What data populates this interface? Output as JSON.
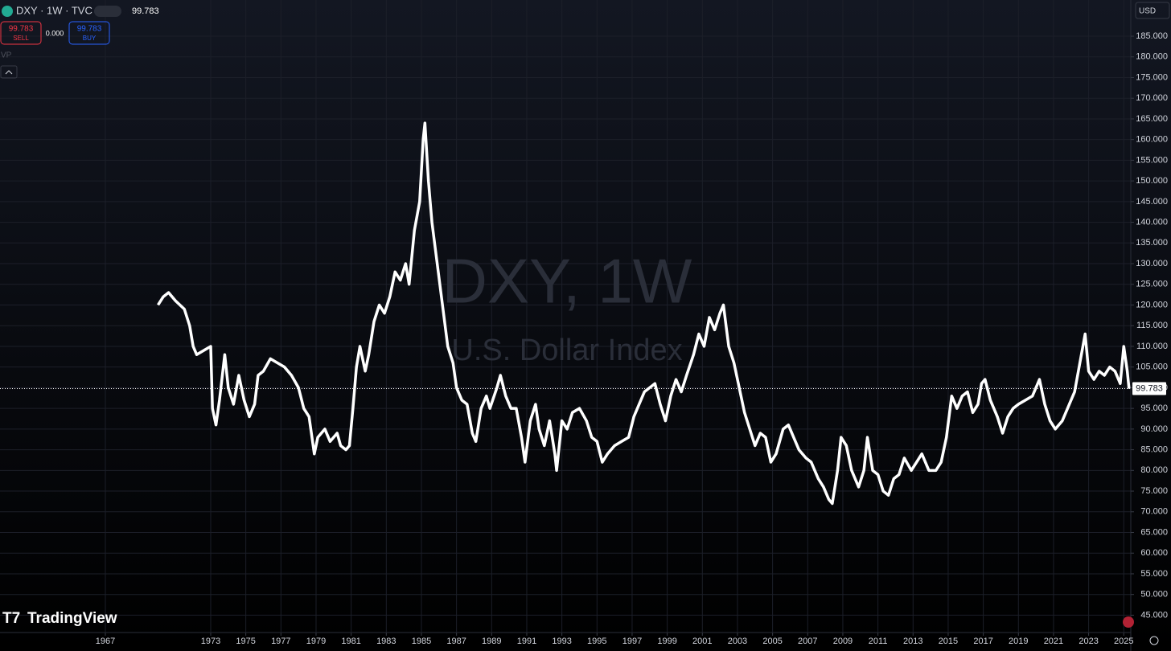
{
  "ui": {
    "symbol": "DXY · 1W · TVC",
    "price": "99.783",
    "sell_price": "99.783",
    "sell": "SELL",
    "spread": "0.000",
    "buy_price": "99.783",
    "buy": "BUY",
    "vp": "VP",
    "watermark_title": "DXY, 1W",
    "watermark_subtitle": "U.S. Dollar Index",
    "brand": "TradingView",
    "currency": "USD"
  },
  "chart_data": {
    "type": "line",
    "color": "#ffffff",
    "grid": true,
    "xlim": [
      1961,
      2025.4
    ],
    "ylim": [
      41,
      193.75
    ],
    "xticks": [
      1967,
      1973,
      1975,
      1977,
      1979,
      1981,
      1983,
      1985,
      1987,
      1989,
      1991,
      1993,
      1995,
      1997,
      1999,
      2001,
      2003,
      2005,
      2007,
      2009,
      2011,
      2013,
      2015,
      2017,
      2019,
      2021,
      2023,
      2025
    ],
    "yticks": [
      {
        "value": 45,
        "label": "45.000"
      },
      {
        "value": 50,
        "label": "50.000"
      },
      {
        "value": 55,
        "label": "55.000"
      },
      {
        "value": 60,
        "label": "60.000"
      },
      {
        "value": 65,
        "label": "65.000"
      },
      {
        "value": 70,
        "label": "70.000"
      },
      {
        "value": 75,
        "label": "75.000"
      },
      {
        "value": 80,
        "label": "80.000"
      },
      {
        "value": 85,
        "label": "85.000"
      },
      {
        "value": 90,
        "label": "90.000"
      },
      {
        "value": 95,
        "label": "95.000"
      },
      {
        "value": 100,
        "label": "100.000"
      },
      {
        "value": 105,
        "label": "105.000"
      },
      {
        "value": 110,
        "label": "110.000"
      },
      {
        "value": 115,
        "label": "115.000"
      },
      {
        "value": 120,
        "label": "120.000"
      },
      {
        "value": 125,
        "label": "125.000"
      },
      {
        "value": 130,
        "label": "130.000"
      },
      {
        "value": 135,
        "label": "135.000"
      },
      {
        "value": 140,
        "label": "140.000"
      },
      {
        "value": 145,
        "label": "145.000"
      },
      {
        "value": 150,
        "label": "150.000"
      },
      {
        "value": 155,
        "label": "155.000"
      },
      {
        "value": 160,
        "label": "160.000"
      },
      {
        "value": 165,
        "label": "165.000"
      },
      {
        "value": 170,
        "label": "170.000"
      },
      {
        "value": 175,
        "label": "175.000"
      },
      {
        "value": 180,
        "label": "180.000"
      },
      {
        "value": 185,
        "label": "185.000"
      }
    ],
    "x": [
      1970.0,
      1970.3,
      1970.6,
      1971.0,
      1971.5,
      1971.8,
      1972.0,
      1972.2,
      1972.6,
      1973.0,
      1973.1,
      1973.3,
      1973.5,
      1973.8,
      1974.0,
      1974.3,
      1974.6,
      1974.9,
      1975.2,
      1975.5,
      1975.7,
      1976.0,
      1976.4,
      1976.8,
      1977.2,
      1977.6,
      1978.0,
      1978.3,
      1978.6,
      1978.9,
      1979.1,
      1979.5,
      1979.8,
      1980.2,
      1980.4,
      1980.7,
      1980.9,
      1981.1,
      1981.3,
      1981.5,
      1981.8,
      1982.0,
      1982.3,
      1982.6,
      1982.9,
      1983.2,
      1983.5,
      1983.8,
      1984.1,
      1984.3,
      1984.6,
      1984.9,
      1985.1,
      1985.2,
      1985.4,
      1985.6,
      1985.9,
      1986.2,
      1986.5,
      1986.8,
      1987.0,
      1987.3,
      1987.6,
      1987.9,
      1988.1,
      1988.4,
      1988.7,
      1988.9,
      1989.3,
      1989.5,
      1989.8,
      1990.1,
      1990.4,
      1990.7,
      1990.9,
      1991.2,
      1991.5,
      1991.7,
      1992.0,
      1992.3,
      1992.6,
      1992.7,
      1993.0,
      1993.3,
      1993.6,
      1994.0,
      1994.4,
      1994.7,
      1995.0,
      1995.3,
      1995.6,
      1996.0,
      1996.4,
      1996.8,
      1997.1,
      1997.4,
      1997.7,
      1998.0,
      1998.3,
      1998.6,
      1998.9,
      1999.2,
      1999.5,
      1999.8,
      2000.1,
      2000.5,
      2000.8,
      2001.1,
      2001.4,
      2001.7,
      2002.0,
      2002.2,
      2002.5,
      2002.8,
      2003.1,
      2003.4,
      2003.7,
      2004.0,
      2004.3,
      2004.6,
      2004.9,
      2005.2,
      2005.6,
      2005.9,
      2006.2,
      2006.5,
      2006.9,
      2007.2,
      2007.6,
      2007.9,
      2008.2,
      2008.4,
      2008.7,
      2008.9,
      2009.2,
      2009.5,
      2009.9,
      2010.2,
      2010.4,
      2010.7,
      2011.0,
      2011.3,
      2011.6,
      2011.9,
      2012.2,
      2012.5,
      2012.9,
      2013.2,
      2013.5,
      2013.9,
      2014.3,
      2014.6,
      2014.9,
      2015.2,
      2015.5,
      2015.8,
      2016.1,
      2016.4,
      2016.7,
      2016.9,
      2017.1,
      2017.4,
      2017.8,
      2018.1,
      2018.4,
      2018.7,
      2019.0,
      2019.4,
      2019.8,
      2020.2,
      2020.5,
      2020.8,
      2021.1,
      2021.5,
      2021.9,
      2022.2,
      2022.5,
      2022.8,
      2023.0,
      2023.3,
      2023.6,
      2023.9,
      2024.2,
      2024.5,
      2024.8,
      2025.0,
      2025.2,
      2025.3
    ],
    "values": [
      120,
      122,
      123,
      121,
      119,
      115,
      110,
      108,
      109,
      110,
      95,
      91,
      97,
      108,
      100,
      96,
      103,
      97,
      93,
      96,
      103,
      104,
      107,
      106,
      105,
      103,
      100,
      95,
      93,
      84,
      88,
      90,
      87,
      89,
      86,
      85,
      86,
      95,
      105,
      110,
      104,
      108,
      116,
      120,
      118,
      122,
      128,
      126,
      130,
      125,
      138,
      145,
      160,
      164,
      150,
      140,
      130,
      120,
      110,
      106,
      100,
      97,
      96,
      89,
      87,
      95,
      98,
      95,
      100,
      103,
      98,
      95,
      95,
      88,
      82,
      92,
      96,
      90,
      86,
      92,
      84,
      80,
      92,
      90,
      94,
      95,
      92,
      88,
      87,
      82,
      84,
      86,
      87,
      88,
      93,
      96,
      99,
      100,
      101,
      96,
      92,
      98,
      102,
      99,
      103,
      108,
      113,
      110,
      117,
      114,
      118,
      120,
      110,
      106,
      100,
      94,
      90,
      86,
      89,
      88,
      82,
      84,
      90,
      91,
      88,
      85,
      83,
      82,
      78,
      76,
      73,
      72,
      80,
      88,
      86,
      80,
      76,
      80,
      88,
      80,
      79,
      75,
      74,
      78,
      79,
      83,
      80,
      82,
      84,
      80,
      80,
      82,
      88,
      98,
      95,
      98,
      99,
      94,
      96,
      101,
      102,
      97,
      93,
      89,
      93,
      95,
      96,
      97,
      98,
      102,
      96,
      92,
      90,
      92,
      96,
      99,
      106,
      113,
      104,
      102,
      104,
      103,
      105,
      104,
      101,
      110,
      104,
      99.783
    ]
  }
}
